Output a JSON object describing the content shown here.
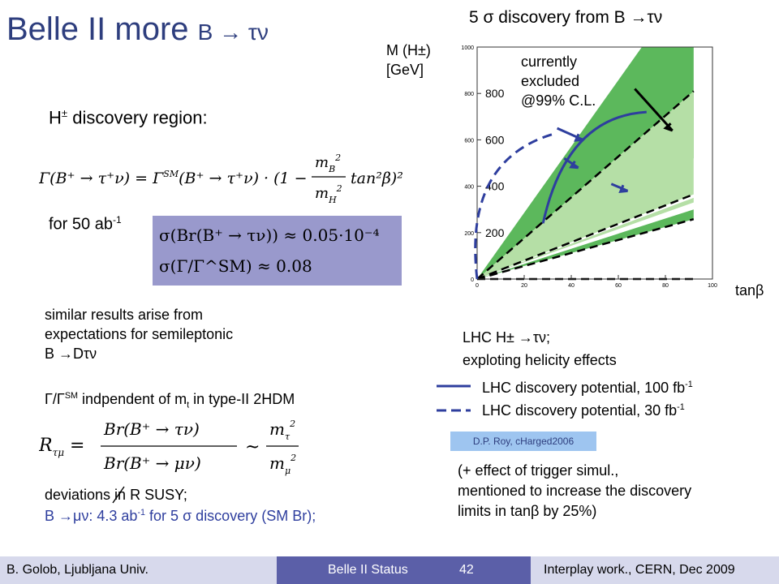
{
  "slide": {
    "title_main": "Belle II more ",
    "title_sub": "B → τν",
    "right_title": "5 σ discovery from B →τν",
    "region_heading": "H",
    "region_heading_sup": "±",
    "region_heading_rest": " discovery region:",
    "gamma_formula": "Γ(B⁺ → τ⁺ν) = Γ^SM(B⁺ → τ⁺ν) · (1 − (m_B²/m_H²) tan²β)²",
    "for_label": "for 50 ab",
    "for_sup": "-1",
    "box_line1": "σ(Br(B⁺ → τν)) ≈ 0.05·10⁻⁴",
    "box_line2": "σ(Γ/Γ^SM) ≈ 0.08",
    "similar_1": "similar results arise from",
    "similar_2": "expectations for semileptonic",
    "similar_3": "B →Dτν",
    "independent": "Γ/Γ",
    "independent_sup": "SM",
    "independent_rest": " indpendent of m",
    "independent_sub": "t",
    "independent_end": " in type-II 2HDM",
    "ratio_formula": "R_τμ = Br(B⁺ → τν)/Br(B⁺ → μν) ~ m_τ²/m_μ²",
    "deviations": "deviations in R SUSY;",
    "bmunu_1": "B →μν: 4.3 ab",
    "bmunu_sup": "-1",
    "bmunu_2": " for 5 σ discovery (SM Br);",
    "lhc_1": "LHC H± →τν;",
    "lhc_2": "exploting helicity effects",
    "legend_solid": "LHC discovery potential, 100 fb",
    "legend_dashed": "LHC discovery potential, 30 fb",
    "legend_sup": "-1",
    "credit": "D.P. Roy, cHarged2006",
    "note_1": "(+ effect of trigger simul.,",
    "note_2": "mentioned to increase the discovery",
    "note_3": "limits in tanβ by 25%)",
    "footer_left": "B. Golob, Ljubljana Univ.",
    "footer_mid": "Belle II Status",
    "footer_page": "42",
    "footer_right": "Interplay work., CERN, Dec 2009"
  },
  "chart_data": {
    "type": "area",
    "ylabel_1": "M (H±)",
    "ylabel_2": "[GeV]",
    "xlabel": "tanβ",
    "annotation_1": "currently",
    "annotation_2": "excluded",
    "annotation_3": "@99% C.L.",
    "small_xticks": [
      "0",
      "20",
      "40",
      "60",
      "80",
      "100"
    ],
    "small_yticks": [
      "0",
      "200",
      "400",
      "600",
      "800",
      "1000"
    ],
    "overlay_xticks": [
      "20",
      "60",
      "100"
    ],
    "overlay_yticks": [
      "200",
      "400",
      "600",
      "800"
    ],
    "xlim": [
      0,
      100
    ],
    "ylim": [
      0,
      1000
    ],
    "colors": {
      "dark_green": "#5cb85c",
      "light_green": "#b5dfa6",
      "curve": "#2e3e9e"
    }
  }
}
